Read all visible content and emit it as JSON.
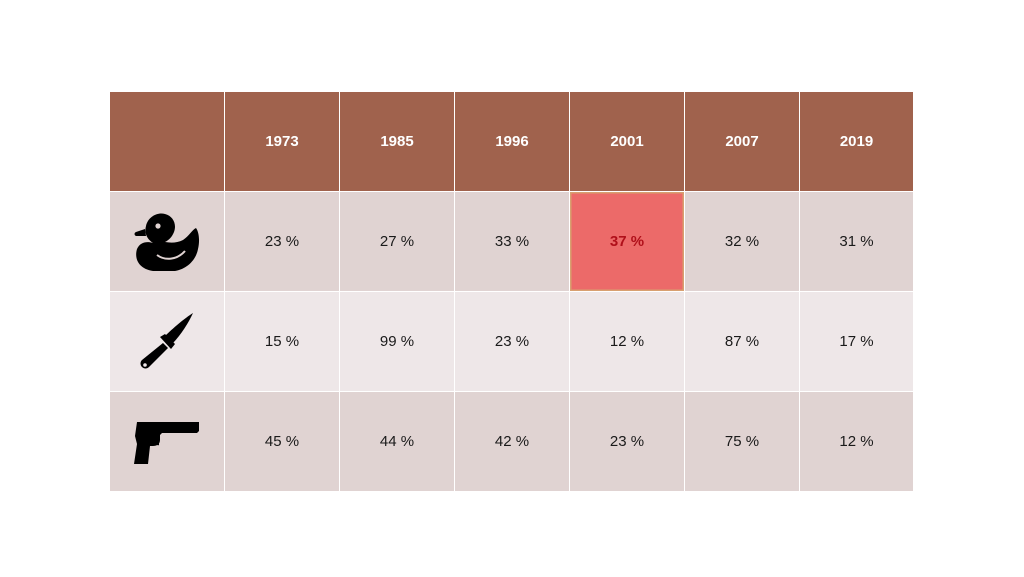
{
  "table": {
    "years": [
      "1973",
      "1985",
      "1996",
      "2001",
      "2007",
      "2019"
    ],
    "rows": [
      {
        "icon": "rubber-duck-icon",
        "values": [
          "23 %",
          "27 %",
          "33 %",
          "37 %",
          "32 %",
          "31 %"
        ]
      },
      {
        "icon": "knife-icon",
        "values": [
          "15 %",
          "99 %",
          "23 %",
          "12 %",
          "87 %",
          "17 %"
        ]
      },
      {
        "icon": "pistol-icon",
        "values": [
          "45 %",
          "44 %",
          "42 %",
          "23 %",
          "75 %",
          "12 %"
        ]
      }
    ],
    "highlighted_cell": {
      "row": 0,
      "column": 3
    }
  },
  "colors": {
    "header_bg": "#A0624D",
    "header_text": "#FFFFFF",
    "row_odd_bg": "#E0D3D2",
    "row_even_bg": "#EEE7E8",
    "highlight_bg": "#EC6A69",
    "highlight_text": "#B0101A"
  }
}
